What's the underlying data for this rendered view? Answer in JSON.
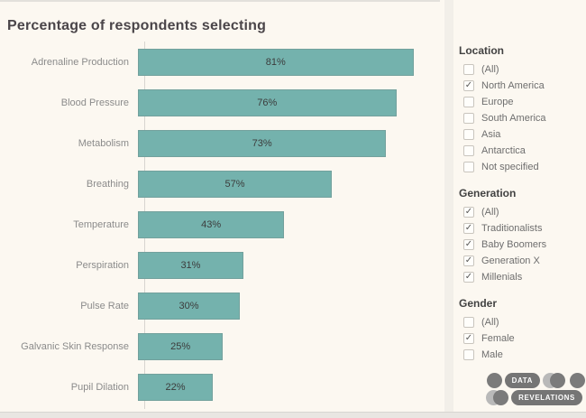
{
  "title": "Percentage of respondents selecting",
  "chart_data": {
    "type": "bar",
    "orientation": "horizontal",
    "title": "Percentage of respondents selecting",
    "categories": [
      "Adrenaline Production",
      "Blood Pressure",
      "Metabolism",
      "Breathing",
      "Temperature",
      "Perspiration",
      "Pulse Rate",
      "Galvanic Skin Response",
      "Pupil Dilation"
    ],
    "values": [
      81,
      76,
      73,
      57,
      43,
      31,
      30,
      25,
      22
    ],
    "value_labels": [
      "81%",
      "76%",
      "73%",
      "57%",
      "43%",
      "31%",
      "30%",
      "25%",
      "22%"
    ],
    "xlabel": "",
    "ylabel": "",
    "xlim": [
      0,
      86.7
    ],
    "grid": false,
    "legend": false,
    "bar_color": "#74b2ad",
    "label_position": "inside-center"
  },
  "filters": [
    {
      "title": "Location",
      "options": [
        {
          "label": "(All)",
          "checked": false,
          "mark": ""
        },
        {
          "label": "North America",
          "checked": true,
          "mark": "✓"
        },
        {
          "label": "Europe",
          "checked": false,
          "mark": ""
        },
        {
          "label": "South America",
          "checked": false,
          "mark": ""
        },
        {
          "label": "Asia",
          "checked": false,
          "mark": ""
        },
        {
          "label": "Antarctica",
          "checked": false,
          "mark": ""
        },
        {
          "label": "Not specified",
          "checked": false,
          "mark": ""
        }
      ]
    },
    {
      "title": "Generation",
      "options": [
        {
          "label": "(All)",
          "checked": true,
          "mark": "✓"
        },
        {
          "label": "Traditionalists",
          "checked": true,
          "mark": "✓"
        },
        {
          "label": "Baby Boomers",
          "checked": true,
          "mark": "✓"
        },
        {
          "label": "Generation X",
          "checked": true,
          "mark": "✓"
        },
        {
          "label": "Millenials",
          "checked": true,
          "mark": "✓"
        }
      ]
    },
    {
      "title": "Gender",
      "options": [
        {
          "label": "(All)",
          "checked": false,
          "mark": ""
        },
        {
          "label": "Female",
          "checked": true,
          "mark": "✓"
        },
        {
          "label": "Male",
          "checked": false,
          "mark": ""
        }
      ]
    }
  ],
  "logo": {
    "pill1": "DATA",
    "pill2": "REVELATIONS"
  },
  "colors": {
    "background": "#fcf8f1",
    "bar": "#74b2ad",
    "title_text": "#4a4549",
    "category_text": "#8b8b8b",
    "value_text": "#3c3c3c",
    "filter_title_text": "#424242",
    "filter_option_text": "#6e6e6e",
    "logo_dark": "#7b7b7b",
    "logo_light": "#b9b9b9"
  }
}
